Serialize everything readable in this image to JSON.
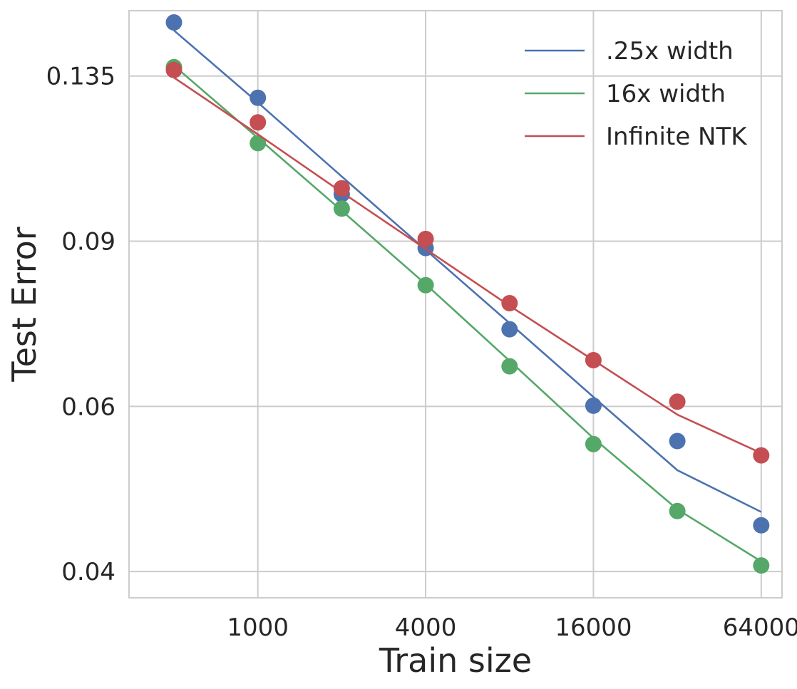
{
  "chart_data": {
    "type": "scatter",
    "title": "",
    "xlabel": "Train size",
    "ylabel": "Test Error",
    "x_scale": "log2",
    "y_scale": "log",
    "xlim": [
      345,
      76000
    ],
    "ylim": [
      0.0375,
      0.1585
    ],
    "x_ticks": [
      1000,
      4000,
      16000,
      64000
    ],
    "x_tick_labels": [
      "1000",
      "4000",
      "16000",
      "64000"
    ],
    "y_ticks": [
      0.04,
      0.06,
      0.09,
      0.135
    ],
    "y_tick_labels": [
      "0.04",
      "0.06",
      "0.09",
      "0.135"
    ],
    "grid": true,
    "legend_position": "top-right",
    "x": [
      500,
      1000,
      2000,
      4000,
      8000,
      16000,
      32000,
      64000
    ],
    "series": [
      {
        "name": ".25x width",
        "color": "#4c72b0",
        "points": [
          0.154,
          0.128,
          0.101,
          0.0885,
          0.0725,
          0.0601,
          0.0551,
          0.0448
        ],
        "fit": [
          0.151,
          0.1265,
          0.1055,
          0.0881,
          0.0736,
          0.0614,
          0.0513,
          0.0463
        ]
      },
      {
        "name": "16x width",
        "color": "#55a868",
        "points": [
          0.138,
          0.1145,
          0.0975,
          0.0808,
          0.0662,
          0.0547,
          0.0464,
          0.0406
        ],
        "fit": [
          0.1385,
          0.116,
          0.097,
          0.081,
          0.0671,
          0.0555,
          0.0466,
          0.041
        ]
      },
      {
        "name": "Infinite NTK",
        "color": "#c44e52",
        "points": [
          0.137,
          0.1205,
          0.1025,
          0.0905,
          0.0773,
          0.0672,
          0.0607,
          0.0532
        ],
        "fit": [
          0.1345,
          0.117,
          0.1015,
          0.0883,
          0.0768,
          0.0672,
          0.0588,
          0.0535
        ]
      }
    ]
  }
}
